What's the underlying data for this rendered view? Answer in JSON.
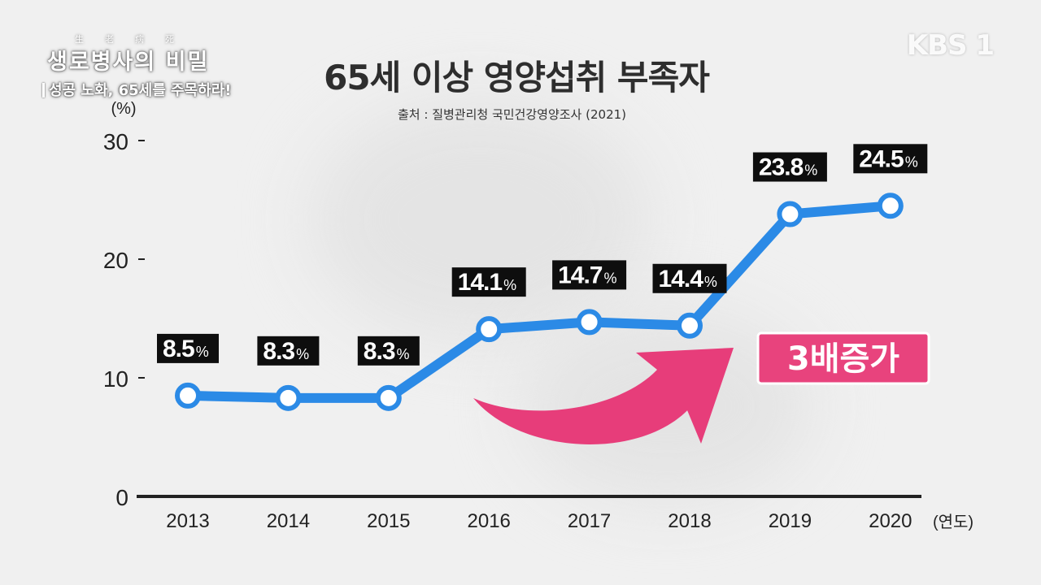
{
  "show": {
    "logo_small": "生老病死",
    "logo_title": "생로병사의 비밀",
    "episode_subtitle": "성공 노화, 65세를 주목하라!"
  },
  "broadcaster": {
    "logo_text": "KBS 1"
  },
  "colors": {
    "line": "#2b8ae6",
    "label_bg": "#0e0e0e",
    "label_text": "#ffffff",
    "arrow": "#e73d7a",
    "badge_bg": "#e8437d",
    "axis": "#222222"
  },
  "chart_data": {
    "type": "line",
    "title": "65세 이상 영양섭취 부족자",
    "source": "출처 : 질병관리청 국민건강영양조사 (2021)",
    "ylabel": "(%)",
    "xlabel": "(연도)",
    "ylim": [
      0,
      30
    ],
    "yticks": [
      0,
      10,
      20,
      30
    ],
    "grid": false,
    "categories": [
      "2013",
      "2014",
      "2015",
      "2016",
      "2017",
      "2018",
      "2019",
      "2020"
    ],
    "series": [
      {
        "values": [
          8.5,
          8.3,
          8.3,
          14.1,
          14.7,
          14.4,
          23.8,
          24.5
        ],
        "labels": [
          "8.5",
          "8.3",
          "8.3",
          "14.1",
          "14.7",
          "14.4",
          "23.8",
          "24.5"
        ],
        "unit": "%"
      }
    ],
    "annotation": "3배증가"
  }
}
